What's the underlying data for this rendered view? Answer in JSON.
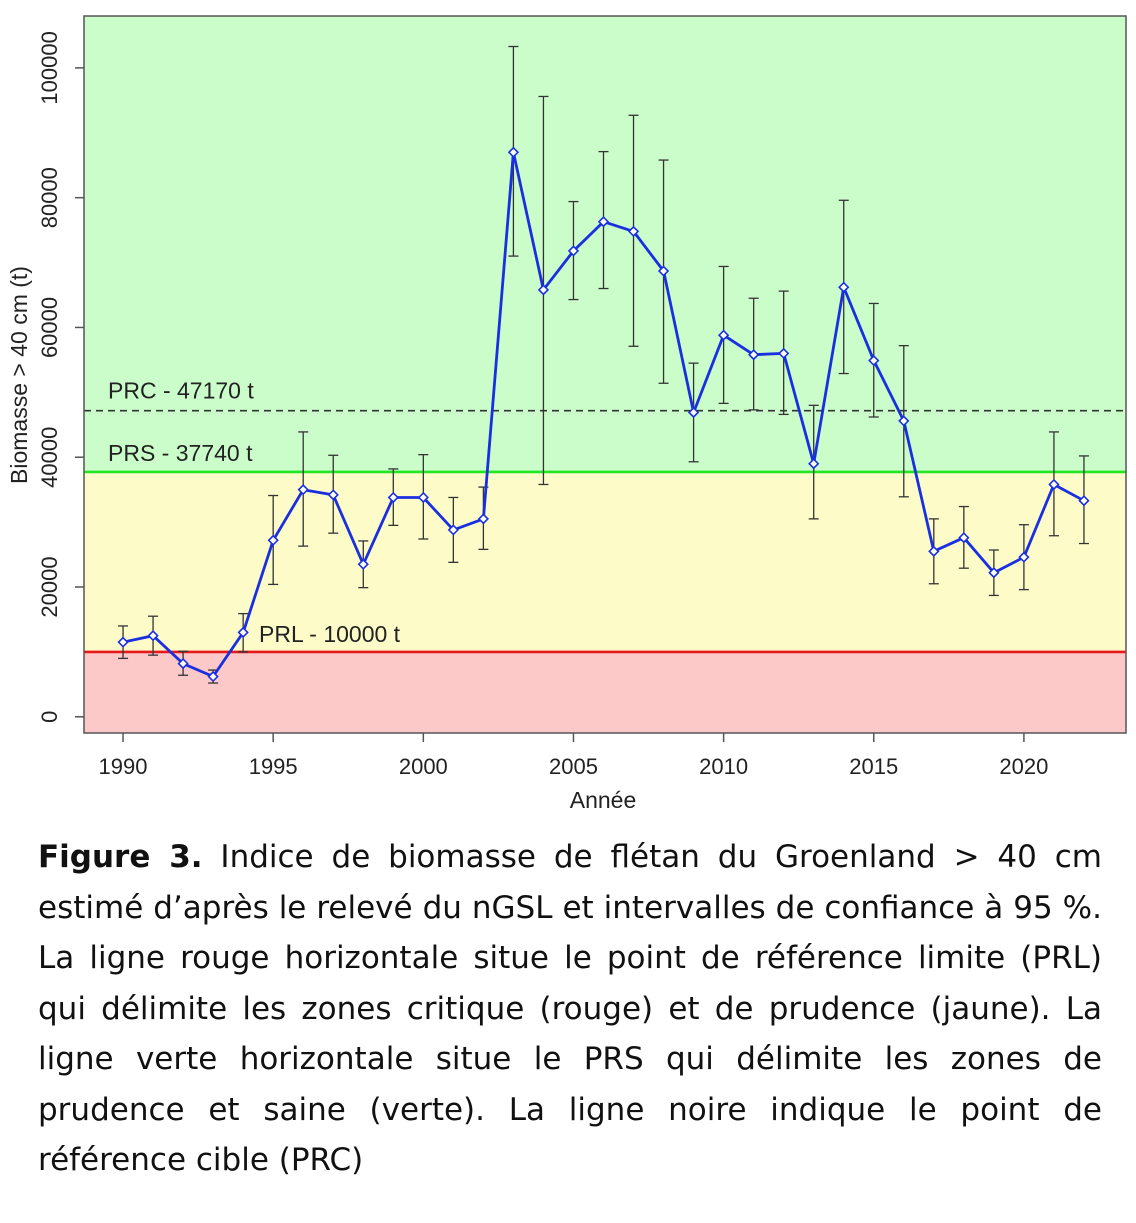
{
  "chart_data": {
    "type": "line",
    "xlabel": "Année",
    "ylabel": "Biomasse > 40 cm (t)",
    "xlim": [
      1988.7,
      2023.4
    ],
    "ylim": [
      -2500,
      108000
    ],
    "x_ticks": [
      1990,
      1995,
      2000,
      2005,
      2010,
      2015,
      2020
    ],
    "y_ticks": [
      0,
      20000,
      40000,
      60000,
      80000,
      100000
    ],
    "grid": false,
    "zones": [
      {
        "name": "critique",
        "from": -2500,
        "to": 10000,
        "color": "#fcc8c8"
      },
      {
        "name": "prudence",
        "from": 10000,
        "to": 37740,
        "color": "#fdfcc9"
      },
      {
        "name": "saine",
        "from": 37740,
        "to": 108000,
        "color": "#cafdc9"
      }
    ],
    "reference_lines": [
      {
        "label": "PRL - 10000 t",
        "value": 10000,
        "color": "#e8191c",
        "style": "solid"
      },
      {
        "label": "PRS - 37740 t",
        "value": 37740,
        "color": "#22e622",
        "style": "solid"
      },
      {
        "label": "PRC - 47170 t",
        "value": 47170,
        "color": "#333333",
        "style": "dashed"
      }
    ],
    "series": [
      {
        "color": "#1a2fe0",
        "x": [
          1990,
          1991,
          1992,
          1993,
          1994,
          1995,
          1996,
          1997,
          1998,
          1999,
          2000,
          2001,
          2002,
          2003,
          2004,
          2005,
          2006,
          2007,
          2008,
          2009,
          2010,
          2011,
          2012,
          2013,
          2014,
          2015,
          2016,
          2017,
          2018,
          2019,
          2020,
          2021,
          2022
        ],
        "y": [
          11500,
          12500,
          8200,
          6200,
          13000,
          27200,
          35000,
          34200,
          23500,
          33800,
          33800,
          28800,
          30500,
          87000,
          65800,
          71800,
          76300,
          74800,
          68700,
          46900,
          58800,
          55800,
          56000,
          39000,
          66200,
          54900,
          45600,
          25500,
          27600,
          22200,
          24600,
          35800,
          33300
        ],
        "ci_low": [
          9000,
          9500,
          6400,
          5200,
          10000,
          20400,
          26300,
          28300,
          19900,
          29500,
          27400,
          23800,
          25800,
          71000,
          35800,
          64300,
          66000,
          57100,
          51400,
          39300,
          48300,
          47300,
          46600,
          30500,
          52900,
          46200,
          33900,
          20500,
          22900,
          18700,
          19600,
          27900,
          26700
        ],
        "ci_high": [
          14000,
          15500,
          10100,
          7200,
          15900,
          34100,
          43900,
          40300,
          27100,
          38200,
          40400,
          33800,
          35400,
          103300,
          95600,
          79400,
          87100,
          92700,
          85800,
          54500,
          69400,
          64500,
          65600,
          48000,
          79600,
          63700,
          57200,
          30500,
          32400,
          25700,
          29600,
          43900,
          40200
        ]
      }
    ]
  },
  "caption": {
    "label": "Figure 3.",
    "text": " Indice de biomasse de flétan du Groenland > 40 cm estimé d’après le relevé du nGSL et intervalles de confiance à 95 %. La ligne rouge horizontale situe le point de référence limite (PRL) qui délimite les zones critique (rouge) et de prudence (jaune). La ligne verte horizontale situe le PRS qui délimite les zones de prudence et saine (verte). La ligne noire indique le point de référence cible (PRC)"
  }
}
